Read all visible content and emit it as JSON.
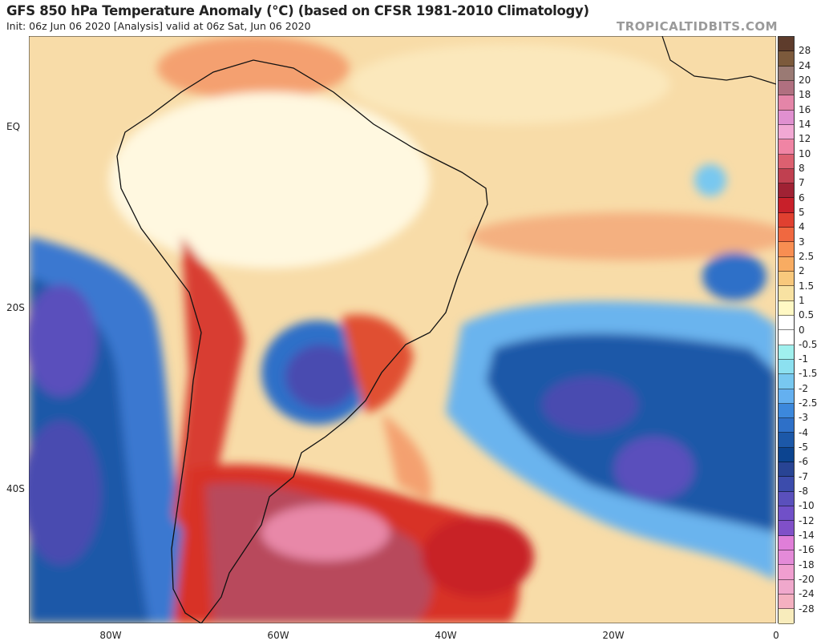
{
  "header": {
    "title": "GFS 850 hPa Temperature Anomaly (°C) (based on CFSR 1981-2010 Climatology)",
    "subtitle": "Init: 06z Jun 06 2020   [Analysis]   valid at 06z Sat, Jun 06 2020",
    "watermark": "TROPICALTIDBITS.COM"
  },
  "axes": {
    "lat_labels": [
      "EQ",
      "20S",
      "40S"
    ],
    "lon_labels": [
      "80W",
      "60W",
      "40W",
      "20W",
      "0"
    ]
  },
  "colorbar": {
    "labels": [
      "28",
      "24",
      "20",
      "18",
      "16",
      "14",
      "12",
      "10",
      "8",
      "7",
      "6",
      "5",
      "4",
      "3",
      "2.5",
      "2",
      "1.5",
      "1",
      "0.5",
      "0",
      "-0.5",
      "-1",
      "-1.5",
      "-2",
      "-2.5",
      "-3",
      "-4",
      "-5",
      "-6",
      "-7",
      "-8",
      "-10",
      "-12",
      "-14",
      "-16",
      "-18",
      "-20",
      "-24",
      "-28"
    ],
    "colors": [
      "#5e3c2c",
      "#7c5a3c",
      "#9a7a74",
      "#b07080",
      "#e485a8",
      "#e090d0",
      "#f2a8d4",
      "#f084a4",
      "#dc6070",
      "#c04050",
      "#a02234",
      "#c8202a",
      "#e04030",
      "#f06840",
      "#f88e52",
      "#f8ac62",
      "#f8c87c",
      "#f8e2a2",
      "#fff8c4",
      "#ffffff",
      "#ffffff",
      "#a0f0ee",
      "#8ce0f0",
      "#78c8f0",
      "#64b0f0",
      "#3c88dc",
      "#2e70c8",
      "#1c58a8",
      "#0c4490",
      "#284494",
      "#3c4cac",
      "#5a50bc",
      "#7050c8",
      "#8050c8",
      "#e07ed8",
      "#e48ad8",
      "#f09ed0",
      "#f0a8cc",
      "#f4b0c0",
      "#f8ecbc"
    ]
  },
  "map": {
    "background": "#f8dca8",
    "land_outline": "#111111"
  }
}
